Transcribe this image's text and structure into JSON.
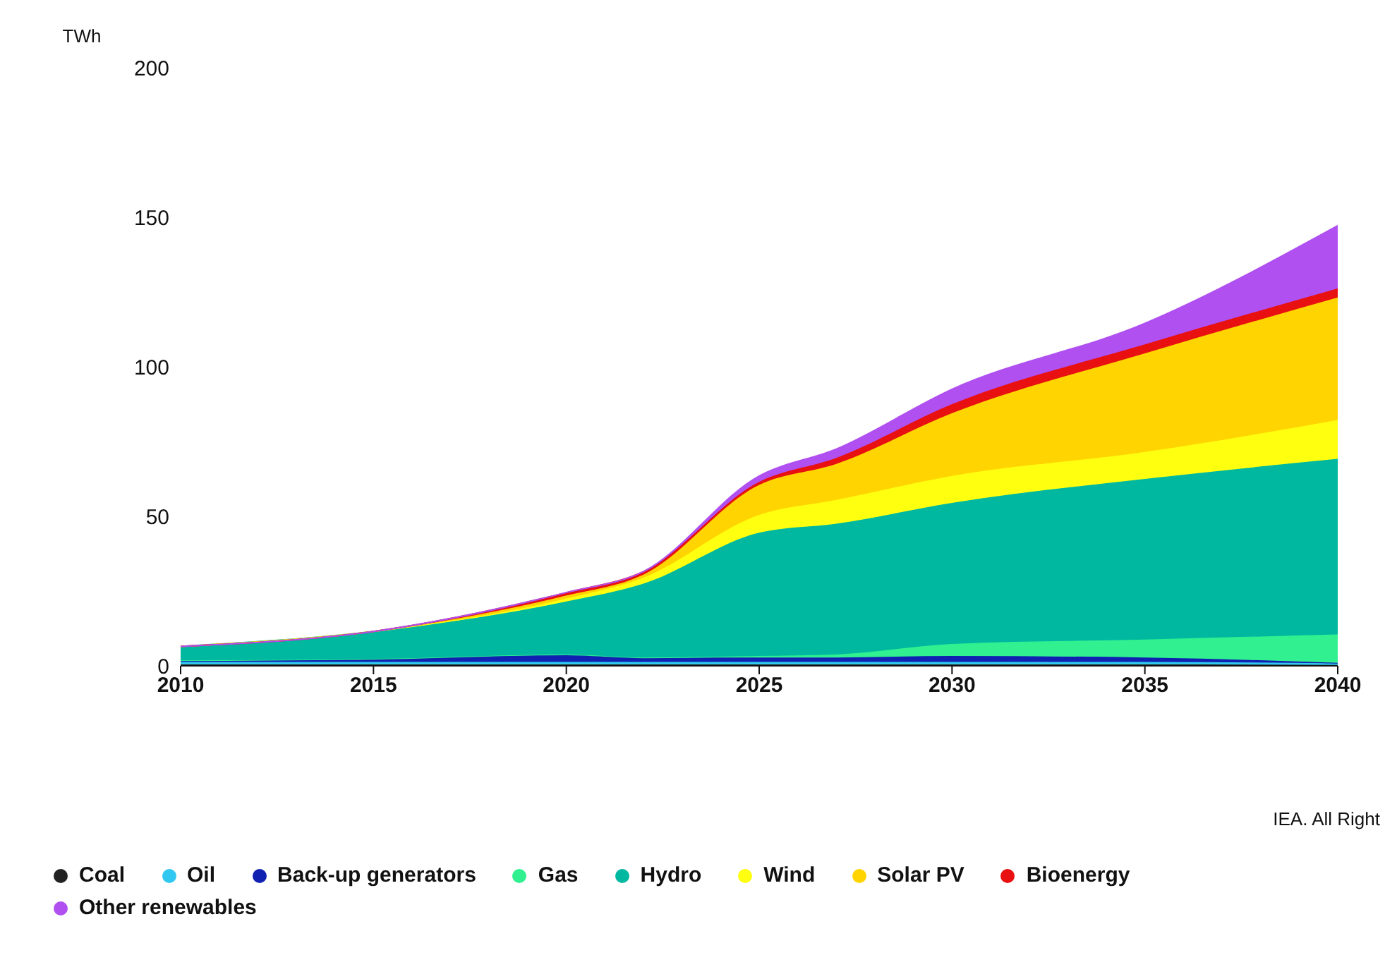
{
  "chart_data": {
    "type": "area",
    "stacked": true,
    "ylabel": "TWh",
    "x": [
      2010,
      2015,
      2020,
      2022,
      2025,
      2027,
      2030,
      2035,
      2040
    ],
    "xlim": [
      2010,
      2040
    ],
    "xticks": [
      2010,
      2015,
      2020,
      2025,
      2030,
      2035,
      2040
    ],
    "ylim": [
      0,
      200
    ],
    "yticks": [
      0,
      50,
      100,
      150,
      200
    ],
    "grid": false,
    "legend": "bottom",
    "annotations": [
      "IEA. All Right"
    ],
    "series": [
      {
        "name": "Coal",
        "color": "#222222",
        "values": [
          0.5,
          0.5,
          0.5,
          0.5,
          0.5,
          0.5,
          0.5,
          0.5,
          0.3
        ]
      },
      {
        "name": "Oil",
        "color": "#30c8f0",
        "values": [
          0.8,
          0.8,
          0.8,
          0.8,
          0.8,
          0.8,
          0.8,
          0.8,
          0.5
        ]
      },
      {
        "name": "Back-up generators",
        "color": "#1020b0",
        "values": [
          0.5,
          1,
          2.5,
          1.5,
          1.5,
          1.5,
          2,
          1.5,
          0.2
        ]
      },
      {
        "name": "Gas",
        "color": "#30f090",
        "values": [
          0,
          0,
          0,
          0,
          0.5,
          1,
          4,
          6,
          9.5
        ]
      },
      {
        "name": "Hydro",
        "color": "#00b8a0",
        "values": [
          4.7,
          9.2,
          17.7,
          24.7,
          41.2,
          43.7,
          47.2,
          53.7,
          58.7
        ]
      },
      {
        "name": "Wind",
        "color": "#ffff10",
        "values": [
          0,
          0,
          1,
          2,
          6,
          8,
          9,
          9,
          13
        ]
      },
      {
        "name": "Solar PV",
        "color": "#ffd400",
        "values": [
          0,
          0,
          1,
          1,
          10,
          12,
          21,
          33,
          41
        ]
      },
      {
        "name": "Bioenergy",
        "color": "#e81010",
        "values": [
          0,
          0,
          1,
          1,
          1,
          2,
          3,
          3,
          3
        ]
      },
      {
        "name": "Other renewables",
        "color": "#b050f0",
        "values": [
          0,
          0,
          0,
          0,
          2,
          3,
          5,
          7,
          21
        ]
      }
    ]
  }
}
